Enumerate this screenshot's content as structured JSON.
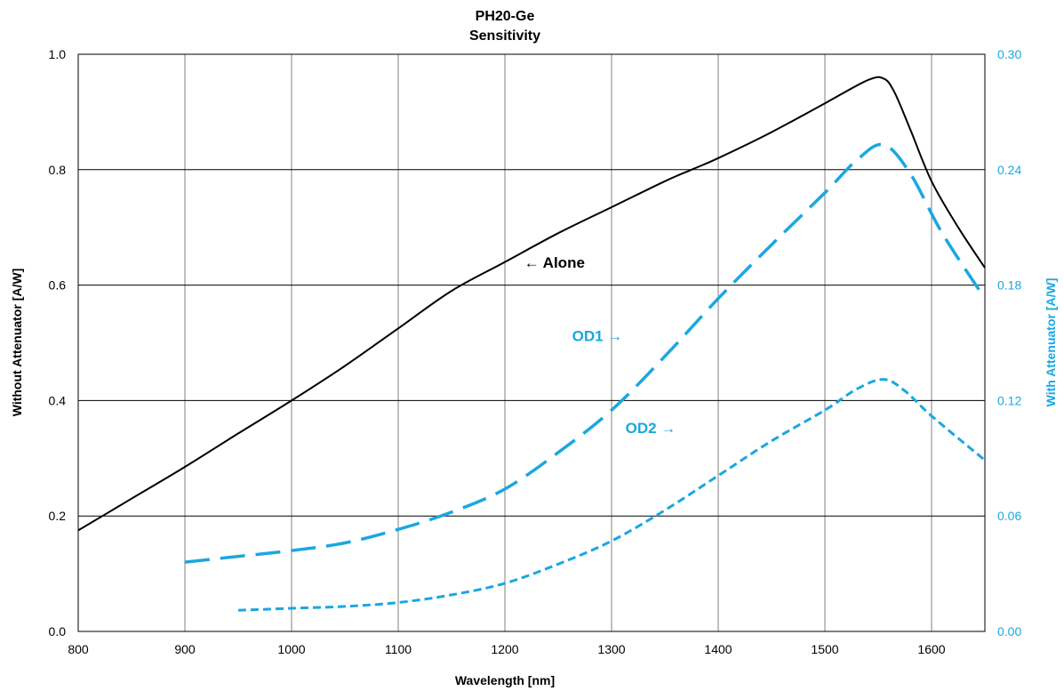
{
  "chart_data": {
    "type": "line",
    "title": "PH20-Ge",
    "subtitle": "Sensitivity",
    "xlabel": "Wavelength [nm]",
    "ylabel": "Without Attenuator [A/W]",
    "ylabel_right": "With Attenuator [A/W]",
    "xlim": [
      800,
      1650
    ],
    "ylim": [
      0,
      1.0
    ],
    "ylim_right": [
      0,
      0.3
    ],
    "x_ticks": [
      "800",
      "900",
      "1000",
      "1100",
      "1200",
      "1300",
      "1400",
      "1500",
      "1600"
    ],
    "y_ticks": [
      "0.0",
      "0.2",
      "0.4",
      "0.6",
      "0.8",
      "1.0"
    ],
    "y_ticks_right": [
      "0.00",
      "0.06",
      "0.12",
      "0.18",
      "0.24",
      "0.30"
    ],
    "grid": true,
    "colors": {
      "alone": "#000000",
      "attenuated": "#1aa7e0"
    },
    "series": [
      {
        "name": "Alone",
        "axis": "left",
        "style": "solid",
        "x": [
          800,
          850,
          900,
          950,
          1000,
          1050,
          1100,
          1150,
          1200,
          1250,
          1300,
          1350,
          1375,
          1400,
          1450,
          1500,
          1540,
          1555,
          1565,
          1580,
          1600,
          1625,
          1650
        ],
        "y": [
          0.175,
          0.23,
          0.285,
          0.343,
          0.4,
          0.46,
          0.525,
          0.59,
          0.64,
          0.69,
          0.735,
          0.78,
          0.8,
          0.82,
          0.865,
          0.915,
          0.955,
          0.958,
          0.935,
          0.87,
          0.78,
          0.7,
          0.63
        ]
      },
      {
        "name": "OD1",
        "axis": "right",
        "style": "dashed",
        "x": [
          900,
          950,
          1000,
          1050,
          1100,
          1150,
          1200,
          1250,
          1300,
          1350,
          1400,
          1450,
          1500,
          1530,
          1555,
          1580,
          1610,
          1650
        ],
        "y": [
          0.036,
          0.039,
          0.042,
          0.046,
          0.053,
          0.062,
          0.074,
          0.093,
          0.115,
          0.143,
          0.173,
          0.201,
          0.228,
          0.245,
          0.253,
          0.238,
          0.207,
          0.173
        ]
      },
      {
        "name": "OD2",
        "axis": "right",
        "style": "dotted",
        "x": [
          950,
          1000,
          1050,
          1100,
          1150,
          1200,
          1250,
          1300,
          1350,
          1400,
          1450,
          1500,
          1530,
          1555,
          1575,
          1600,
          1650
        ],
        "y": [
          0.011,
          0.012,
          0.013,
          0.015,
          0.019,
          0.025,
          0.035,
          0.047,
          0.063,
          0.081,
          0.099,
          0.115,
          0.126,
          0.131,
          0.125,
          0.112,
          0.089
        ]
      }
    ],
    "annotations": [
      {
        "text": "← Alone",
        "color": "#000000",
        "x": 1218,
        "y": 0.63,
        "axis": "left"
      },
      {
        "text": "OD1 →",
        "color": "#1aa7e0",
        "x": 1263,
        "y": 0.151,
        "axis": "right"
      },
      {
        "text": "OD2 →",
        "color": "#1aa7e0",
        "x": 1313,
        "y": 0.103,
        "axis": "right"
      }
    ]
  }
}
